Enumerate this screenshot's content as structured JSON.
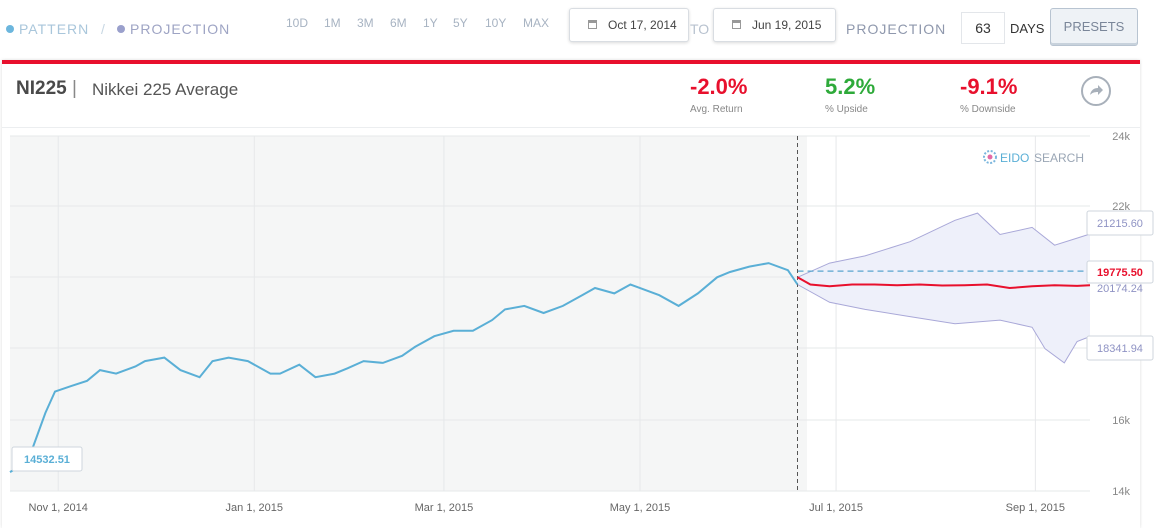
{
  "legend": {
    "pattern_label": "PATTERN",
    "separator": "/",
    "projection_label": "PROJECTION"
  },
  "ranges": [
    "10D",
    "1M",
    "3M",
    "6M",
    "1Y",
    "5Y",
    "10Y",
    "MAX"
  ],
  "date_range": {
    "from": "Oct 17, 2014",
    "to_label": "TO",
    "to": "Jun 19, 2015"
  },
  "projection_control": {
    "label": "PROJECTION",
    "days_value": "63",
    "days_label": "DAYS",
    "presets_label": "PRESETS"
  },
  "header": {
    "ticker": "NI225",
    "separator": "|",
    "name": "Nikkei 225 Average",
    "share_icon": "share-arrow-icon"
  },
  "stats": {
    "avg_return": {
      "value": "-2.0%",
      "label": "Avg. Return"
    },
    "upside": {
      "value": "5.2%",
      "label": "% Upside"
    },
    "downside": {
      "value": "-9.1%",
      "label": "% Downside"
    }
  },
  "watermark": {
    "part1": "EIDO",
    "part2": "SEARCH"
  },
  "colors": {
    "pattern_line": "#5aafd6",
    "projection_line": "#e8102d",
    "band_line": "#a9a8d8",
    "band_fill": "#eef0fa",
    "accent_red": "#e8102d",
    "upside_green": "#2eaa3a"
  },
  "chart_data": {
    "type": "line",
    "x_tick_labels": [
      "Nov 1, 2014",
      "Jan 1, 2015",
      "Mar 1, 2015",
      "May 1, 2015",
      "Jul 1, 2015",
      "Sep 1, 2015"
    ],
    "y_tick_labels": [
      "24k",
      "22k",
      "16k",
      "14k"
    ],
    "ylim": [
      14000,
      24000
    ],
    "grid": true,
    "pattern_start_label": "14532.51",
    "callouts": {
      "upper": "21215.60",
      "median": "19775.50",
      "mean": "20174.24",
      "lower": "18341.94"
    },
    "pattern_series": {
      "name": "PATTERN",
      "x": [
        "2014-10-17",
        "2014-10-20",
        "2014-10-24",
        "2014-10-28",
        "2014-10-31",
        "2014-11-05",
        "2014-11-10",
        "2014-11-14",
        "2014-11-19",
        "2014-11-25",
        "2014-11-28",
        "2014-12-04",
        "2014-12-09",
        "2014-12-15",
        "2014-12-19",
        "2014-12-24",
        "2014-12-30",
        "2015-01-06",
        "2015-01-09",
        "2015-01-15",
        "2015-01-20",
        "2015-01-26",
        "2015-01-30",
        "2015-02-04",
        "2015-02-10",
        "2015-02-16",
        "2015-02-20",
        "2015-02-26",
        "2015-03-04",
        "2015-03-10",
        "2015-03-16",
        "2015-03-20",
        "2015-03-26",
        "2015-04-01",
        "2015-04-07",
        "2015-04-13",
        "2015-04-17",
        "2015-04-23",
        "2015-04-28",
        "2015-05-07",
        "2015-05-13",
        "2015-05-19",
        "2015-05-25",
        "2015-05-29",
        "2015-06-04",
        "2015-06-10",
        "2015-06-16",
        "2015-06-19"
      ],
      "y": [
        14532.51,
        14700,
        15200,
        16200,
        16800,
        16950,
        17100,
        17400,
        17300,
        17500,
        17650,
        17750,
        17400,
        17200,
        17650,
        17750,
        17650,
        17300,
        17300,
        17550,
        17200,
        17300,
        17450,
        17650,
        17600,
        17800,
        18050,
        18350,
        18500,
        18500,
        18800,
        19100,
        19200,
        19000,
        19200,
        19500,
        19700,
        19550,
        19800,
        19500,
        19200,
        19550,
        20000,
        20150,
        20300,
        20400,
        20200,
        19800
      ]
    },
    "projection_series": {
      "name": "PROJECTION",
      "x": [
        "2015-06-19",
        "2015-06-23",
        "2015-06-29",
        "2015-07-06",
        "2015-07-13",
        "2015-07-20",
        "2015-07-27",
        "2015-08-03",
        "2015-08-10",
        "2015-08-17",
        "2015-08-24",
        "2015-08-31",
        "2015-09-07",
        "2015-09-14",
        "2015-09-18"
      ],
      "y": [
        20000,
        19800,
        19750,
        19800,
        19800,
        19780,
        19800,
        19770,
        19780,
        19800,
        19700,
        19750,
        19780,
        19760,
        19775.5
      ]
    },
    "upper_band": {
      "x": [
        "2015-06-19",
        "2015-06-29",
        "2015-07-10",
        "2015-07-24",
        "2015-08-07",
        "2015-08-14",
        "2015-08-21",
        "2015-08-31",
        "2015-09-07",
        "2015-09-14",
        "2015-09-18"
      ],
      "y": [
        20000,
        20400,
        20600,
        21000,
        21600,
        21800,
        21200,
        21400,
        20900,
        21100,
        21215.6
      ]
    },
    "lower_band": {
      "x": [
        "2015-06-19",
        "2015-06-29",
        "2015-07-10",
        "2015-07-24",
        "2015-08-07",
        "2015-08-21",
        "2015-08-31",
        "2015-09-04",
        "2015-09-10",
        "2015-09-14",
        "2015-09-18"
      ],
      "y": [
        19800,
        19300,
        19100,
        18900,
        18700,
        18800,
        18600,
        18000,
        17600,
        18200,
        18341.94
      ]
    },
    "mean_level": 20174.24,
    "projection_start": "2015-06-19"
  }
}
